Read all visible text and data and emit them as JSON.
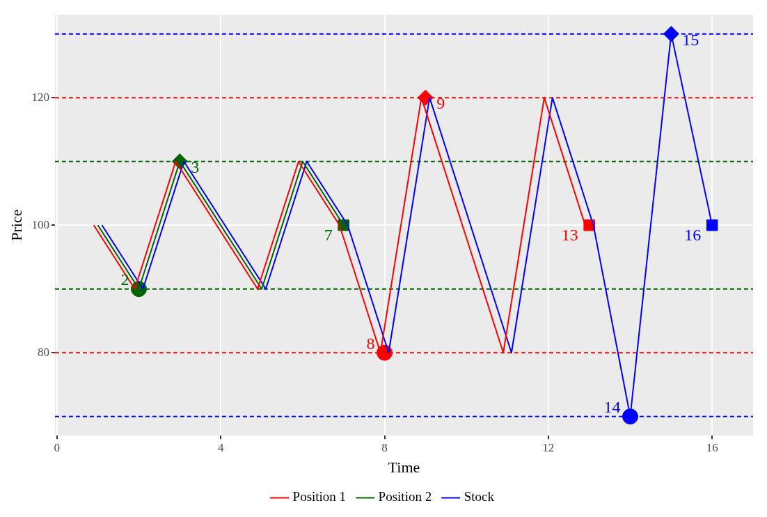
{
  "chart_data": {
    "type": "line",
    "xlabel": "Time",
    "ylabel": "Price",
    "xlim": [
      -0.05,
      17
    ],
    "xticks": [
      0,
      4,
      8,
      12,
      16
    ],
    "ylim": [
      67,
      133
    ],
    "yticks": [
      80,
      100,
      120
    ],
    "grid": true,
    "legend": "bottom",
    "line_style": "solid",
    "series": [
      {
        "name": "Position 1",
        "type": "line",
        "color": "#ff0000",
        "x": [
          0.9,
          1.9,
          2.9,
          4.9,
          5.9,
          6.9,
          7.9,
          8.9,
          10.9,
          11.9,
          12.9
        ],
        "values": [
          100,
          90,
          110,
          90,
          110,
          100,
          80,
          120,
          80,
          120,
          100
        ]
      },
      {
        "name": "Position 2",
        "type": "line",
        "color": "#006400",
        "x": [
          1,
          2,
          3,
          5,
          6,
          7
        ],
        "values": [
          100,
          90,
          110,
          90,
          110,
          100
        ]
      },
      {
        "name": "Stock",
        "type": "line",
        "color": "#0000ff",
        "x": [
          1.1,
          2.1,
          3.1,
          5.1,
          6.1,
          7.1,
          8.1,
          9.1,
          11.1,
          12.1,
          13.1,
          14,
          15,
          16
        ],
        "values": [
          100,
          90,
          110,
          90,
          110,
          100,
          80,
          120,
          80,
          120,
          100,
          70,
          130,
          100
        ]
      },
      {
        "type": "scatter",
        "marker": "circle",
        "color": "#006400",
        "x": [
          2
        ],
        "values": [
          90
        ]
      },
      {
        "type": "scatter",
        "marker": "diamond",
        "color": "#006400",
        "x": [
          3
        ],
        "values": [
          110
        ]
      },
      {
        "type": "scatter",
        "marker": "square",
        "color": "#006400",
        "x": [
          7
        ],
        "values": [
          100
        ]
      },
      {
        "type": "scatter",
        "marker": "circle",
        "color": "#ff0000",
        "x": [
          8
        ],
        "values": [
          80
        ]
      },
      {
        "type": "scatter",
        "marker": "diamond",
        "color": "#ff0000",
        "x": [
          9
        ],
        "values": [
          120
        ]
      },
      {
        "type": "scatter",
        "marker": "square",
        "color": "#ff0000",
        "x": [
          13
        ],
        "values": [
          100
        ]
      },
      {
        "type": "scatter",
        "marker": "circle",
        "color": "#0000ff",
        "x": [
          14
        ],
        "values": [
          70
        ]
      },
      {
        "type": "scatter",
        "marker": "diamond",
        "color": "#0000ff",
        "x": [
          15
        ],
        "values": [
          130
        ]
      },
      {
        "type": "scatter",
        "marker": "square",
        "color": "#0000ff",
        "x": [
          16
        ],
        "values": [
          100
        ]
      }
    ],
    "ref_lines": [
      {
        "axis": "y",
        "value": 130,
        "color": "#0000ff",
        "line_style": "dashed"
      },
      {
        "axis": "y",
        "value": 120,
        "color": "#ff0000",
        "line_style": "dashed"
      },
      {
        "axis": "y",
        "value": 110,
        "color": "#006400",
        "line_style": "dashed"
      },
      {
        "axis": "y",
        "value": 90,
        "color": "#006400",
        "line_style": "dashed"
      },
      {
        "axis": "y",
        "value": 80,
        "color": "#ff0000",
        "line_style": "dashed"
      },
      {
        "axis": "y",
        "value": 70,
        "color": "#0000ff",
        "line_style": "dashed"
      }
    ],
    "annotations": [
      {
        "text": "2",
        "x": 2,
        "y": 90
      },
      {
        "text": "3",
        "x": 3,
        "y": 110
      },
      {
        "text": "7",
        "x": 7,
        "y": 100
      },
      {
        "text": "8",
        "x": 8,
        "y": 80
      },
      {
        "text": "9",
        "x": 9,
        "y": 120
      },
      {
        "text": "13",
        "x": 13,
        "y": 100
      },
      {
        "text": "14",
        "x": 14,
        "y": 70
      },
      {
        "text": "15",
        "x": 15,
        "y": 130
      },
      {
        "text": "16",
        "x": 16,
        "y": 100
      }
    ]
  }
}
